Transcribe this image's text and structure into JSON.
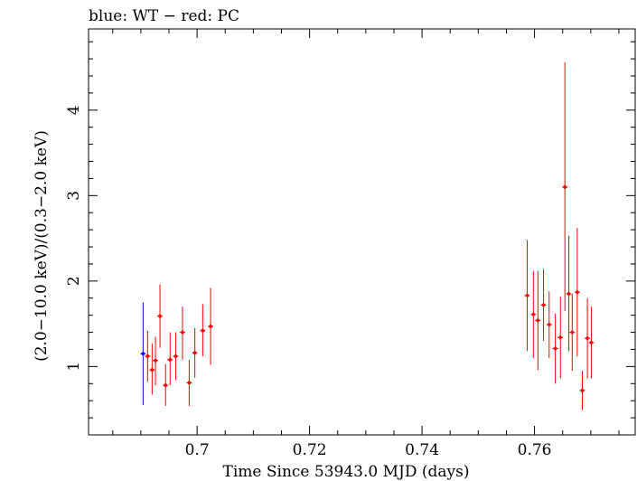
{
  "chart_data": {
    "type": "scatter",
    "title": "blue: WT − red: PC",
    "xlabel": "Time Since 53943.0 MJD (days)",
    "ylabel": "(2.0−10.0 keV)/(0.3−2.0 keV)",
    "xlim": [
      0.6807,
      0.7779
    ],
    "ylim": [
      0.2,
      4.95
    ],
    "x_ticks": [
      {
        "value": 0.7,
        "label": "0.7"
      },
      {
        "value": 0.72,
        "label": "0.72"
      },
      {
        "value": 0.74,
        "label": "0.74"
      },
      {
        "value": 0.76,
        "label": "0.76"
      }
    ],
    "y_ticks": [
      {
        "value": 1,
        "label": "1"
      },
      {
        "value": 2,
        "label": "2"
      },
      {
        "value": 3,
        "label": "3"
      },
      {
        "value": 4,
        "label": "4"
      }
    ],
    "series": [
      {
        "color": "#0000ff",
        "points": [
          {
            "x": 0.6904,
            "y": 1.15,
            "ylo": 0.55,
            "yhi": 1.75
          }
        ]
      },
      {
        "color": "#ff0000",
        "points": [
          {
            "x": 0.6912,
            "y": 1.12,
            "ylo": 0.82,
            "yhi": 1.42
          },
          {
            "x": 0.692,
            "y": 0.96,
            "ylo": 0.67,
            "yhi": 1.27
          },
          {
            "x": 0.6926,
            "y": 1.07,
            "ylo": 0.78,
            "yhi": 1.35
          },
          {
            "x": 0.6934,
            "y": 1.59,
            "ylo": 1.22,
            "yhi": 1.96
          },
          {
            "x": 0.6944,
            "y": 0.78,
            "ylo": 0.54,
            "yhi": 1.03
          },
          {
            "x": 0.6952,
            "y": 1.08,
            "ylo": 0.78,
            "yhi": 1.4
          },
          {
            "x": 0.6962,
            "y": 1.12,
            "ylo": 0.84,
            "yhi": 1.4
          },
          {
            "x": 0.6974,
            "y": 1.4,
            "ylo": 1.08,
            "yhi": 1.7
          },
          {
            "x": 0.6986,
            "y": 0.81,
            "ylo": 0.54,
            "yhi": 1.08
          },
          {
            "x": 0.6996,
            "y": 1.16,
            "ylo": 0.87,
            "yhi": 1.45
          },
          {
            "x": 0.701,
            "y": 1.42,
            "ylo": 1.12,
            "yhi": 1.73
          },
          {
            "x": 0.7024,
            "y": 1.47,
            "ylo": 1.02,
            "yhi": 1.92
          },
          {
            "x": 0.7587,
            "y": 1.83,
            "ylo": 1.18,
            "yhi": 2.48
          },
          {
            "x": 0.7598,
            "y": 1.61,
            "ylo": 1.1,
            "yhi": 2.12
          },
          {
            "x": 0.7606,
            "y": 1.54,
            "ylo": 0.96,
            "yhi": 2.12
          },
          {
            "x": 0.7616,
            "y": 1.72,
            "ylo": 1.3,
            "yhi": 2.14
          },
          {
            "x": 0.7626,
            "y": 1.49,
            "ylo": 1.1,
            "yhi": 1.88
          },
          {
            "x": 0.7637,
            "y": 1.21,
            "ylo": 0.8,
            "yhi": 1.62
          },
          {
            "x": 0.7646,
            "y": 1.34,
            "ylo": 0.86,
            "yhi": 1.82
          },
          {
            "x": 0.7654,
            "y": 3.1,
            "ylo": 1.65,
            "yhi": 4.56
          },
          {
            "x": 0.7661,
            "y": 1.85,
            "ylo": 1.18,
            "yhi": 2.53
          },
          {
            "x": 0.7667,
            "y": 1.4,
            "ylo": 0.95,
            "yhi": 1.85
          },
          {
            "x": 0.7676,
            "y": 1.87,
            "ylo": 1.12,
            "yhi": 2.62
          },
          {
            "x": 0.7685,
            "y": 0.72,
            "ylo": 0.49,
            "yhi": 0.95
          },
          {
            "x": 0.7694,
            "y": 1.33,
            "ylo": 0.86,
            "yhi": 1.8
          },
          {
            "x": 0.7701,
            "y": 1.28,
            "ylo": 0.86,
            "yhi": 1.7
          }
        ]
      }
    ],
    "grid": false,
    "legend": "none"
  }
}
